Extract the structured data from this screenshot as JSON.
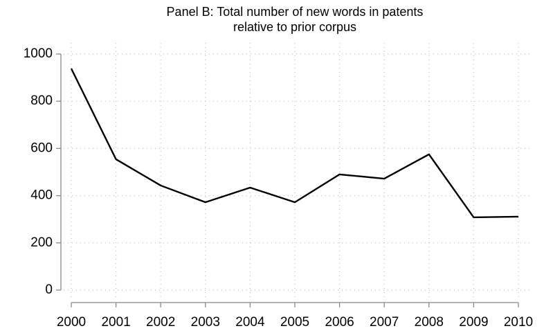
{
  "chart_data": {
    "type": "line",
    "title": [
      "Panel B: Total number of new words in patents",
      "relative to prior corpus"
    ],
    "x": [
      2000,
      2001,
      2002,
      2003,
      2004,
      2005,
      2006,
      2007,
      2008,
      2009,
      2010
    ],
    "series": [
      {
        "color": "#000000",
        "values": [
          938,
          554,
          443,
          372,
          434,
          372,
          490,
          472,
          575,
          308,
          311
        ]
      }
    ],
    "xlim": [
      2000,
      2010
    ],
    "xticks": [
      2000,
      2001,
      2002,
      2003,
      2004,
      2005,
      2006,
      2007,
      2008,
      2009,
      2010
    ],
    "ylim": [
      0,
      1000
    ],
    "yticks": [
      0,
      200,
      400,
      600,
      800,
      1000
    ],
    "grid": true
  }
}
